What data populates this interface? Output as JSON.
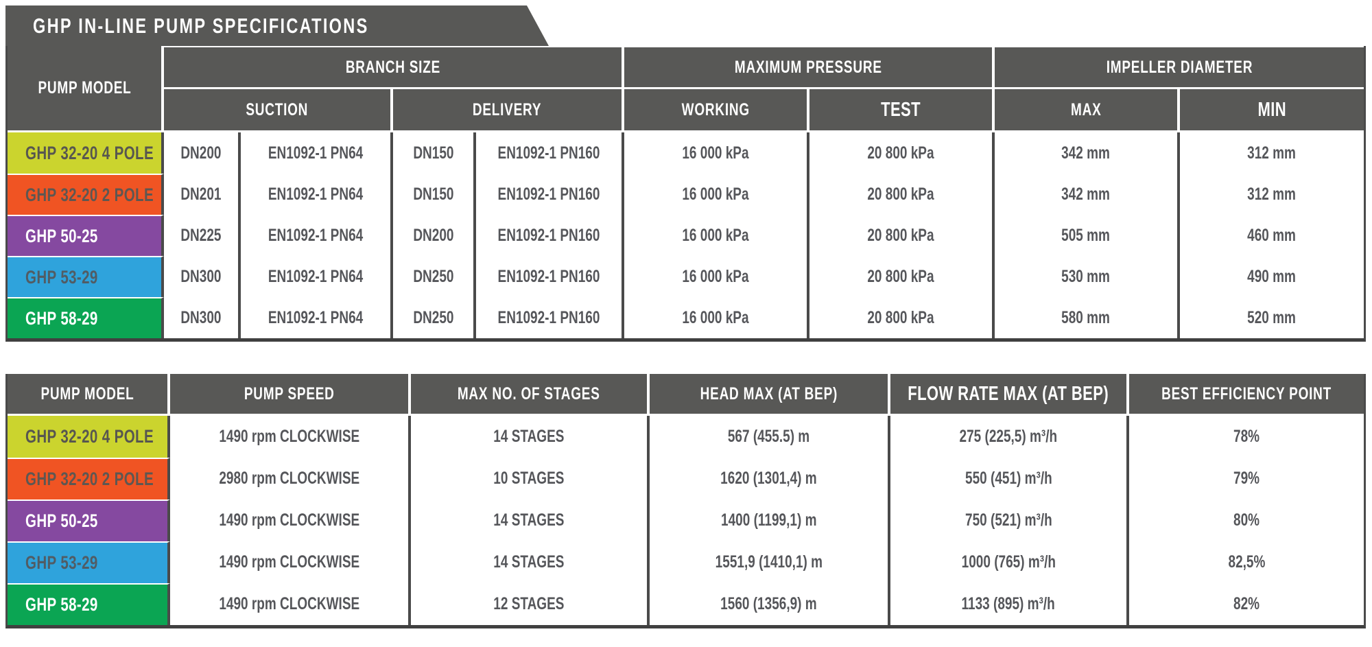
{
  "title": "GHP IN-LINE PUMP SPECIFICATIONS",
  "colors": {
    "header_bg": "#585856",
    "grid_line": "#4a4a4a",
    "data_text": "#55565a",
    "row_yellow": "#cbd42e",
    "row_orange": "#f05423",
    "row_purple": "#8549a0",
    "row_blue": "#2fa3dc",
    "row_green": "#0ba553"
  },
  "table1": {
    "header": {
      "pump_model": "PUMP MODEL",
      "groups": [
        {
          "label": "BRANCH SIZE",
          "sub": [
            "SUCTION",
            "DELIVERY"
          ]
        },
        {
          "label": "MAXIMUM PRESSURE",
          "sub": [
            "WORKING",
            "TEST"
          ]
        },
        {
          "label": "IMPELLER DIAMETER",
          "sub": [
            "MAX",
            "MIN"
          ]
        }
      ]
    },
    "rows": [
      {
        "model": "GHP 32-20 4 POLE",
        "label_style": "background:#cbd42e;color:#575650",
        "suction_dn": "DN200",
        "suction_std": "EN1092-1 PN64",
        "delivery_dn": "DN150",
        "delivery_std": "EN1092-1 PN160",
        "working": "16 000 kPa",
        "test": "20 800 kPa",
        "impeller_max": "342 mm",
        "impeller_min": "312 mm"
      },
      {
        "model": "GHP 32-20 2 POLE",
        "label_style": "background:#f05423;color:#5d5752",
        "suction_dn": "DN201",
        "suction_std": "EN1092-1 PN64",
        "delivery_dn": "DN150",
        "delivery_std": "EN1092-1 PN160",
        "working": "16 000 kPa",
        "test": "20 800 kPa",
        "impeller_max": "342 mm",
        "impeller_min": "312 mm"
      },
      {
        "model": "GHP 50-25",
        "label_style": "background:#8549a0;color:#ffffff",
        "suction_dn": "DN225",
        "suction_std": "EN1092-1 PN64",
        "delivery_dn": "DN200",
        "delivery_std": "EN1092-1 PN160",
        "working": "16 000 kPa",
        "test": "20 800 kPa",
        "impeller_max": "505 mm",
        "impeller_min": "460 mm"
      },
      {
        "model": "GHP 53-29",
        "label_style": "background:#2fa3dc;color:#515c64",
        "suction_dn": "DN300",
        "suction_std": "EN1092-1 PN64",
        "delivery_dn": "DN250",
        "delivery_std": "EN1092-1 PN160",
        "working": "16 000 kPa",
        "test": "20 800 kPa",
        "impeller_max": "530 mm",
        "impeller_min": "490 mm"
      },
      {
        "model": "GHP 58-29",
        "label_style": "background:#0ba553;color:#ffffff",
        "suction_dn": "DN300",
        "suction_std": "EN1092-1 PN64",
        "delivery_dn": "DN250",
        "delivery_std": "EN1092-1 PN160",
        "working": "16 000 kPa",
        "test": "20 800 kPa",
        "impeller_max": "580 mm",
        "impeller_min": "520 mm"
      }
    ]
  },
  "table2": {
    "headers": [
      "PUMP MODEL",
      "PUMP SPEED",
      "MAX NO. OF STAGES",
      "HEAD MAX (AT BEP)",
      "FLOW RATE MAX (AT BEP)",
      "BEST EFFICIENCY POINT"
    ],
    "rows": [
      {
        "model": "GHP 32-20 4 POLE",
        "label_style": "background:#cbd42e;color:#575650",
        "speed": "1490 rpm CLOCKWISE",
        "stages": "14 STAGES",
        "head": "567 (455.5) m",
        "flow": "275 (225,5) m³/h",
        "bep": "78%"
      },
      {
        "model": "GHP 32-20 2 POLE",
        "label_style": "background:#f05423;color:#5d5752",
        "speed": "2980 rpm CLOCKWISE",
        "stages": "10 STAGES",
        "head": "1620 (1301,4) m",
        "flow": "550 (451) m³/h",
        "bep": "79%"
      },
      {
        "model": "GHP 50-25",
        "label_style": "background:#8549a0;color:#ffffff",
        "speed": "1490 rpm CLOCKWISE",
        "stages": "14 STAGES",
        "head": "1400 (1199,1) m",
        "flow": "750 (521) m³/h",
        "bep": "80%"
      },
      {
        "model": "GHP 53-29",
        "label_style": "background:#2fa3dc;color:#515c64",
        "speed": "1490 rpm CLOCKWISE",
        "stages": "14 STAGES",
        "head": "1551,9 (1410,1) m",
        "flow": "1000 (765) m³/h",
        "bep": "82,5%"
      },
      {
        "model": "GHP 58-29",
        "label_style": "background:#0ba553;color:#ffffff",
        "speed": "1490 rpm CLOCKWISE",
        "stages": "12 STAGES",
        "head": "1560 (1356,9) m",
        "flow": "1133 (895) m³/h",
        "bep": "82%"
      }
    ]
  }
}
